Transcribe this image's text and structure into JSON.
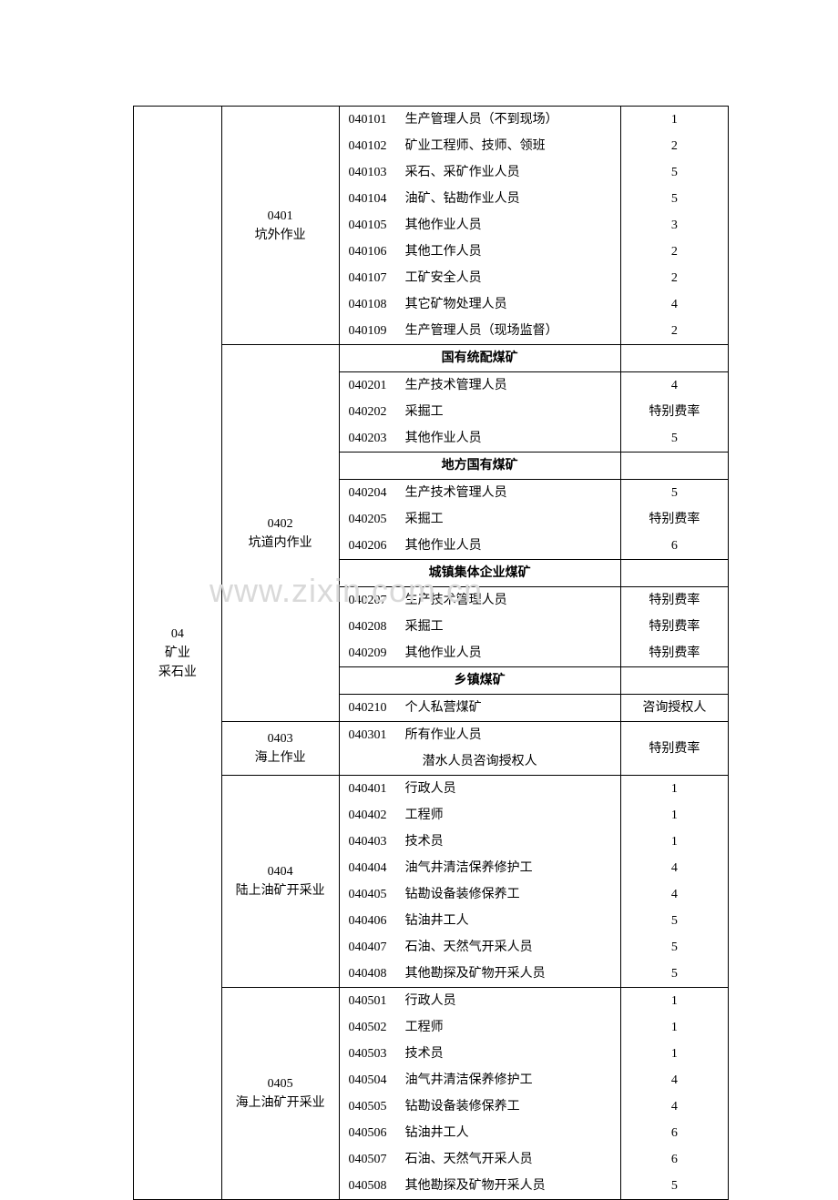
{
  "watermark": "www.zixin.com.cn",
  "category": {
    "code": "04",
    "line2": "矿业",
    "line3": "采石业"
  },
  "sub0401": {
    "code": "0401",
    "name": "坑外作业"
  },
  "rows0401": [
    {
      "code": "040101",
      "name": "生产管理人员（不到现场）",
      "rate": "1"
    },
    {
      "code": "040102",
      "name": "矿业工程师、技师、领班",
      "rate": "2"
    },
    {
      "code": "040103",
      "name": "采石、采矿作业人员",
      "rate": "5"
    },
    {
      "code": "040104",
      "name": "油矿、钻勘作业人员",
      "rate": "5"
    },
    {
      "code": "040105",
      "name": "其他作业人员",
      "rate": "3"
    },
    {
      "code": "040106",
      "name": "其他工作人员",
      "rate": "2"
    },
    {
      "code": "040107",
      "name": "工矿安全人员",
      "rate": "2"
    },
    {
      "code": "040108",
      "name": "其它矿物处理人员",
      "rate": "4"
    },
    {
      "code": "040109",
      "name": "生产管理人员（现场监督）",
      "rate": "2"
    }
  ],
  "sub0402": {
    "code": "0402",
    "name": "坑道内作业"
  },
  "headers0402": {
    "h1": "国有统配煤矿",
    "h2": "地方国有煤矿",
    "h3": "城镇集体企业煤矿",
    "h4": "乡镇煤矿"
  },
  "rows0402a": [
    {
      "code": "040201",
      "name": "生产技术管理人员",
      "rate": "4"
    },
    {
      "code": "040202",
      "name": "采掘工",
      "rate": "特别费率"
    },
    {
      "code": "040203",
      "name": "其他作业人员",
      "rate": "5"
    }
  ],
  "rows0402b": [
    {
      "code": "040204",
      "name": "生产技术管理人员",
      "rate": "5"
    },
    {
      "code": "040205",
      "name": "采掘工",
      "rate": "特别费率"
    },
    {
      "code": "040206",
      "name": "其他作业人员",
      "rate": "6"
    }
  ],
  "rows0402c": [
    {
      "code": "040207",
      "name": "生产技术管理人员",
      "rate": "特别费率"
    },
    {
      "code": "040208",
      "name": "采掘工",
      "rate": "特别费率"
    },
    {
      "code": "040209",
      "name": "其他作业人员",
      "rate": "特别费率"
    }
  ],
  "rows0402d": [
    {
      "code": "040210",
      "name": "个人私营煤矿",
      "rate": "咨询授权人"
    }
  ],
  "sub0403": {
    "code": "0403",
    "name": "海上作业"
  },
  "rows0403": {
    "r1": {
      "code": "040301",
      "name": "所有作业人员"
    },
    "r2name": "潜水人员咨询授权人",
    "rate": "特别费率"
  },
  "sub0404": {
    "code": "0404",
    "name": "陆上油矿开采业"
  },
  "rows0404": [
    {
      "code": "040401",
      "name": "行政人员",
      "rate": "1"
    },
    {
      "code": "040402",
      "name": "工程师",
      "rate": "1"
    },
    {
      "code": "040403",
      "name": "技术员",
      "rate": "1"
    },
    {
      "code": "040404",
      "name": "油气井清洁保养修护工",
      "rate": "4"
    },
    {
      "code": "040405",
      "name": "钻勘设备装修保养工",
      "rate": "4"
    },
    {
      "code": "040406",
      "name": "钻油井工人",
      "rate": "5"
    },
    {
      "code": "040407",
      "name": "石油、天然气开采人员",
      "rate": "5"
    },
    {
      "code": "040408",
      "name": "其他勘探及矿物开采人员",
      "rate": "5"
    }
  ],
  "sub0405": {
    "code": "0405",
    "name": "海上油矿开采业"
  },
  "rows0405": [
    {
      "code": "040501",
      "name": "行政人员",
      "rate": "1"
    },
    {
      "code": "040502",
      "name": "工程师",
      "rate": "1"
    },
    {
      "code": "040503",
      "name": "技术员",
      "rate": "1"
    },
    {
      "code": "040504",
      "name": "油气井清洁保养修护工",
      "rate": "4"
    },
    {
      "code": "040505",
      "name": "钻勘设备装修保养工",
      "rate": "4"
    },
    {
      "code": "040506",
      "name": "钻油井工人",
      "rate": "6"
    },
    {
      "code": "040507",
      "name": "石油、天然气开采人员",
      "rate": "6"
    },
    {
      "code": "040508",
      "name": "其他勘探及矿物开采人员",
      "rate": "5"
    }
  ]
}
